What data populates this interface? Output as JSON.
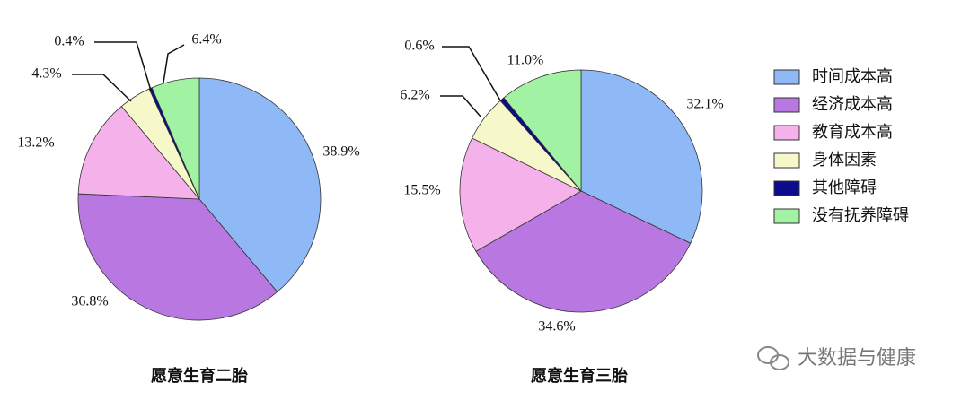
{
  "chart_data": [
    {
      "type": "pie",
      "title": "愿意生育二胎",
      "categories": [
        "时间成本高",
        "经济成本高",
        "教育成本高",
        "身体因素",
        "其他障碍",
        "没有抚养障碍"
      ],
      "values": [
        38.9,
        36.8,
        13.2,
        4.3,
        0.4,
        6.4
      ],
      "value_labels": [
        "38.9%",
        "36.8%",
        "13.2%",
        "4.3%",
        "0.4%",
        "6.4%"
      ],
      "colors": [
        "#8fb8f6",
        "#b978e1",
        "#f4b1ea",
        "#f6f8c9",
        "#0b0b8c",
        "#a2f2a4"
      ]
    },
    {
      "type": "pie",
      "title": "愿意生育三胎",
      "categories": [
        "时间成本高",
        "经济成本高",
        "教育成本高",
        "身体因素",
        "其他障碍",
        "没有抚养障碍"
      ],
      "values": [
        32.1,
        34.6,
        15.5,
        6.2,
        0.6,
        11.0
      ],
      "value_labels": [
        "32.1%",
        "34.6%",
        "15.5%",
        "6.2%",
        "0.6%",
        "11.0%"
      ],
      "colors": [
        "#8fb8f6",
        "#b978e1",
        "#f4b1ea",
        "#f6f8c9",
        "#0b0b8c",
        "#a2f2a4"
      ]
    }
  ],
  "watermark": "大数据与健康"
}
